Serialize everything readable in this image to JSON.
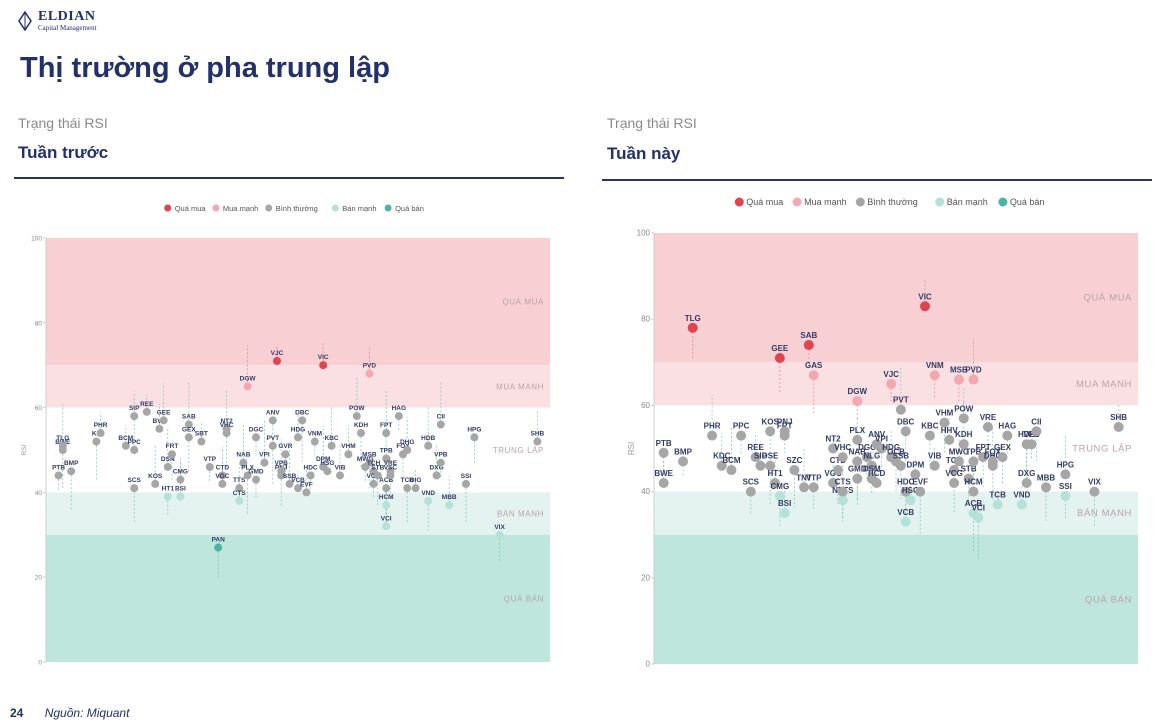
{
  "brand": {
    "name": "ELDIAN",
    "sub": "Capital Management"
  },
  "title": "Thị trường ở pha trung lập",
  "footer": {
    "page": "24",
    "source": "Nguồn: Miquant"
  },
  "panels": [
    {
      "subtitle": "Trạng thái RSI",
      "heading": "Tuần trước"
    },
    {
      "subtitle": "Trạng thái RSI",
      "heading": "Tuần này"
    }
  ],
  "legend": [
    {
      "label": "Quá mua",
      "color": "#e0454f"
    },
    {
      "label": "Mua mạnh",
      "color": "#f3a8b0"
    },
    {
      "label": "Bình thường",
      "color": "#a6a6a6"
    },
    {
      "label": "Bán mạnh",
      "color": "#b4e1d8"
    },
    {
      "label": "Quá bán",
      "color": "#4fb3a3"
    }
  ],
  "zone_colors": {
    "qua_mua": "#f8d0d4",
    "mua_manh": "#fbe0e3",
    "trung_lap": "#ffffff",
    "ban_manh": "#e5f3f0",
    "qua_ban": "#bfe6dc"
  },
  "chart_data": [
    {
      "type": "scatter",
      "ylabel": "RSI",
      "ylim": [
        0,
        100
      ],
      "yticks": [
        0,
        20,
        40,
        60,
        80,
        100
      ],
      "zones": [
        {
          "label": "QUÁ MUA",
          "from": 70,
          "to": 100
        },
        {
          "label": "MUA MẠNH",
          "from": 60,
          "to": 70
        },
        {
          "label": "TRUNG LẬP",
          "from": 40,
          "to": 60
        },
        {
          "label": "BÁN MẠNH",
          "from": 30,
          "to": 40
        },
        {
          "label": "QUÁ BÁN",
          "from": 0,
          "to": 30
        }
      ],
      "points": [
        {
          "l": "PTB",
          "x": 1.5,
          "y": 44
        },
        {
          "l": "BWE",
          "x": 2,
          "y": 50
        },
        {
          "l": "TLG",
          "x": 2,
          "y": 51
        },
        {
          "l": "BMP",
          "x": 3,
          "y": 45
        },
        {
          "l": "KE",
          "x": 6,
          "y": 52
        },
        {
          "l": "PHR",
          "x": 6.5,
          "y": 54
        },
        {
          "l": "BCM",
          "x": 9.5,
          "y": 51
        },
        {
          "l": "SIP",
          "x": 10.5,
          "y": 58
        },
        {
          "l": "SCS",
          "x": 10.5,
          "y": 41
        },
        {
          "l": "PPC",
          "x": 10.5,
          "y": 50
        },
        {
          "l": "REE",
          "x": 12,
          "y": 59
        },
        {
          "l": "KOS",
          "x": 13,
          "y": 42
        },
        {
          "l": "BVH",
          "x": 13.5,
          "y": 55
        },
        {
          "l": "GEE",
          "x": 14,
          "y": 57
        },
        {
          "l": "DSN",
          "x": 14.5,
          "y": 46
        },
        {
          "l": "HT1",
          "x": 14.5,
          "y": 39
        },
        {
          "l": "FRT",
          "x": 15,
          "y": 49
        },
        {
          "l": "CMG",
          "x": 16,
          "y": 43
        },
        {
          "l": "BSI",
          "x": 16,
          "y": 39
        },
        {
          "l": "SAB",
          "x": 17,
          "y": 56
        },
        {
          "l": "GEX",
          "x": 17,
          "y": 53
        },
        {
          "l": "SBT",
          "x": 18.5,
          "y": 52
        },
        {
          "l": "VTP",
          "x": 19.5,
          "y": 46
        },
        {
          "l": "PAN",
          "x": 20.5,
          "y": 27
        },
        {
          "l": "CTD",
          "x": 21,
          "y": 44
        },
        {
          "l": "VGC",
          "x": 21,
          "y": 42
        },
        {
          "l": "NT2",
          "x": 21.5,
          "y": 55
        },
        {
          "l": "VHC",
          "x": 21.5,
          "y": 54
        },
        {
          "l": "TTS",
          "x": 23,
          "y": 41
        },
        {
          "l": "CTS",
          "x": 23,
          "y": 38
        },
        {
          "l": "NAB",
          "x": 23.5,
          "y": 47
        },
        {
          "l": "PLX",
          "x": 24,
          "y": 44
        },
        {
          "l": "DGW",
          "x": 24,
          "y": 65
        },
        {
          "l": "DGC",
          "x": 25,
          "y": 53
        },
        {
          "l": "GMD",
          "x": 25,
          "y": 43
        },
        {
          "l": "VPI",
          "x": 26,
          "y": 47
        },
        {
          "l": "ANV",
          "x": 27,
          "y": 57
        },
        {
          "l": "PVT",
          "x": 27,
          "y": 51
        },
        {
          "l": "VJC",
          "x": 27.5,
          "y": 71
        },
        {
          "l": "GVR",
          "x": 28.5,
          "y": 49
        },
        {
          "l": "PNJ",
          "x": 28,
          "y": 44
        },
        {
          "l": "VPB",
          "x": 28,
          "y": 45
        },
        {
          "l": "SSB",
          "x": 29,
          "y": 42
        },
        {
          "l": "VCB",
          "x": 30,
          "y": 41
        },
        {
          "l": "HDG",
          "x": 30,
          "y": 53
        },
        {
          "l": "DBC",
          "x": 30.5,
          "y": 57
        },
        {
          "l": "EVF",
          "x": 31,
          "y": 40
        },
        {
          "l": "HDC",
          "x": 31.5,
          "y": 44
        },
        {
          "l": "VNM",
          "x": 32,
          "y": 52
        },
        {
          "l": "VIC",
          "x": 33,
          "y": 70
        },
        {
          "l": "DPM",
          "x": 33,
          "y": 46
        },
        {
          "l": "HSG",
          "x": 33.5,
          "y": 45
        },
        {
          "l": "KBC",
          "x": 34,
          "y": 51
        },
        {
          "l": "VIB",
          "x": 35,
          "y": 44
        },
        {
          "l": "VHM",
          "x": 36,
          "y": 49
        },
        {
          "l": "POW",
          "x": 37,
          "y": 58
        },
        {
          "l": "KDH",
          "x": 37.5,
          "y": 54
        },
        {
          "l": "MWG",
          "x": 38,
          "y": 46
        },
        {
          "l": "MSB",
          "x": 38.5,
          "y": 47
        },
        {
          "l": "TCH",
          "x": 39,
          "y": 45
        },
        {
          "l": "VCG",
          "x": 39,
          "y": 42
        },
        {
          "l": "STB",
          "x": 39.5,
          "y": 44
        },
        {
          "l": "PVD",
          "x": 38.5,
          "y": 68
        },
        {
          "l": "FPT",
          "x": 40.5,
          "y": 54
        },
        {
          "l": "TPB",
          "x": 40.5,
          "y": 48
        },
        {
          "l": "ACB",
          "x": 40.5,
          "y": 41
        },
        {
          "l": "HCM",
          "x": 40.5,
          "y": 37
        },
        {
          "l": "VRE",
          "x": 41,
          "y": 45
        },
        {
          "l": "VSC",
          "x": 41,
          "y": 44
        },
        {
          "l": "VCI",
          "x": 40.5,
          "y": 32
        },
        {
          "l": "HAG",
          "x": 42,
          "y": 58
        },
        {
          "l": "FOX",
          "x": 42.5,
          "y": 49
        },
        {
          "l": "DHG",
          "x": 43,
          "y": 50
        },
        {
          "l": "TCB",
          "x": 43,
          "y": 41
        },
        {
          "l": "DIG",
          "x": 44,
          "y": 41
        },
        {
          "l": "VND",
          "x": 45.5,
          "y": 38
        },
        {
          "l": "HDB",
          "x": 45.5,
          "y": 51
        },
        {
          "l": "CII",
          "x": 47,
          "y": 56
        },
        {
          "l": "DXG",
          "x": 46.5,
          "y": 44
        },
        {
          "l": "VPB",
          "x": 47,
          "y": 47
        },
        {
          "l": "MBB",
          "x": 48,
          "y": 37
        },
        {
          "l": "SSI",
          "x": 50,
          "y": 42
        },
        {
          "l": "HPG",
          "x": 51,
          "y": 53
        },
        {
          "l": "VIX",
          "x": 54,
          "y": 30
        },
        {
          "l": "SHB",
          "x": 58.5,
          "y": 52
        }
      ]
    },
    {
      "type": "scatter",
      "ylabel": "RSI",
      "ylim": [
        0,
        100
      ],
      "yticks": [
        0,
        20,
        40,
        60,
        80,
        100
      ],
      "zones": [
        {
          "label": "QUÁ MUA",
          "from": 70,
          "to": 100
        },
        {
          "label": "MUA MẠNH",
          "from": 60,
          "to": 70
        },
        {
          "label": "TRUNG LẬP",
          "from": 40,
          "to": 60
        },
        {
          "label": "BÁN MẠNH",
          "from": 30,
          "to": 40
        },
        {
          "label": "QUÁ BÁN",
          "from": 0,
          "to": 30
        }
      ],
      "points": [
        {
          "l": "PTB",
          "x": 1,
          "y": 49
        },
        {
          "l": "BWE",
          "x": 1,
          "y": 42
        },
        {
          "l": "BMP",
          "x": 3,
          "y": 47
        },
        {
          "l": "TLG",
          "x": 4,
          "y": 78
        },
        {
          "l": "PHR",
          "x": 6,
          "y": 53
        },
        {
          "l": "KDC",
          "x": 7,
          "y": 46
        },
        {
          "l": "BCM",
          "x": 8,
          "y": 45
        },
        {
          "l": "PPC",
          "x": 9,
          "y": 53
        },
        {
          "l": "SCS",
          "x": 10,
          "y": 40
        },
        {
          "l": "REE",
          "x": 10.5,
          "y": 48
        },
        {
          "l": "SIP",
          "x": 11,
          "y": 46
        },
        {
          "l": "DSE",
          "x": 12,
          "y": 46
        },
        {
          "l": "KOS",
          "x": 12,
          "y": 54
        },
        {
          "l": "HT1",
          "x": 12.5,
          "y": 42
        },
        {
          "l": "CMG",
          "x": 13,
          "y": 39
        },
        {
          "l": "GEE",
          "x": 13,
          "y": 71
        },
        {
          "l": "FRT",
          "x": 13.5,
          "y": 53
        },
        {
          "l": "PNJ",
          "x": 13.5,
          "y": 54
        },
        {
          "l": "BSI",
          "x": 13.5,
          "y": 35
        },
        {
          "l": "SZC",
          "x": 14.5,
          "y": 45
        },
        {
          "l": "TNT",
          "x": 15.5,
          "y": 41
        },
        {
          "l": "SAB",
          "x": 16,
          "y": 74
        },
        {
          "l": "VTP",
          "x": 16.5,
          "y": 41
        },
        {
          "l": "GAS",
          "x": 16.5,
          "y": 67
        },
        {
          "l": "NT2",
          "x": 18.5,
          "y": 50
        },
        {
          "l": "VGC",
          "x": 18.5,
          "y": 42
        },
        {
          "l": "CTD",
          "x": 19,
          "y": 45
        },
        {
          "l": "VHC",
          "x": 19.5,
          "y": 48
        },
        {
          "l": "NETS",
          "x": 19.5,
          "y": 38
        },
        {
          "l": "CTS",
          "x": 19.5,
          "y": 40
        },
        {
          "l": "GMD",
          "x": 21,
          "y": 43
        },
        {
          "l": "NAB",
          "x": 21,
          "y": 47
        },
        {
          "l": "PLX",
          "x": 21,
          "y": 52
        },
        {
          "l": "DGW",
          "x": 21,
          "y": 61
        },
        {
          "l": "DGC",
          "x": 22,
          "y": 48
        },
        {
          "l": "NLG",
          "x": 22.5,
          "y": 46
        },
        {
          "l": "DSM",
          "x": 22.5,
          "y": 43
        },
        {
          "l": "HCD",
          "x": 23,
          "y": 42
        },
        {
          "l": "ANV",
          "x": 23,
          "y": 51
        },
        {
          "l": "VPI",
          "x": 23.5,
          "y": 50
        },
        {
          "l": "HDG",
          "x": 24.5,
          "y": 48
        },
        {
          "l": "VJC",
          "x": 24.5,
          "y": 65
        },
        {
          "l": "OCB",
          "x": 25,
          "y": 47
        },
        {
          "l": "PVT",
          "x": 25.5,
          "y": 59
        },
        {
          "l": "SSB",
          "x": 25.5,
          "y": 46
        },
        {
          "l": "HDC",
          "x": 26,
          "y": 40
        },
        {
          "l": "DBC",
          "x": 26,
          "y": 54
        },
        {
          "l": "VCB",
          "x": 26,
          "y": 33
        },
        {
          "l": "HSG",
          "x": 26.5,
          "y": 38
        },
        {
          "l": "DPM",
          "x": 27,
          "y": 44
        },
        {
          "l": "EVF",
          "x": 27.5,
          "y": 40
        },
        {
          "l": "VIC",
          "x": 28,
          "y": 83
        },
        {
          "l": "KBC",
          "x": 28.5,
          "y": 53
        },
        {
          "l": "VIB",
          "x": 29,
          "y": 46
        },
        {
          "l": "VNM",
          "x": 29,
          "y": 67
        },
        {
          "l": "VHM",
          "x": 30,
          "y": 56
        },
        {
          "l": "HHV",
          "x": 30.5,
          "y": 52
        },
        {
          "l": "TCH",
          "x": 31,
          "y": 45
        },
        {
          "l": "VCG",
          "x": 31,
          "y": 42
        },
        {
          "l": "MWG",
          "x": 31.5,
          "y": 47
        },
        {
          "l": "MSB",
          "x": 31.5,
          "y": 66
        },
        {
          "l": "KDH",
          "x": 32,
          "y": 51
        },
        {
          "l": "STB",
          "x": 32.5,
          "y": 43
        },
        {
          "l": "PVD",
          "x": 33,
          "y": 66
        },
        {
          "l": "POW",
          "x": 32,
          "y": 57
        },
        {
          "l": "TPB",
          "x": 33,
          "y": 47
        },
        {
          "l": "HCM",
          "x": 33,
          "y": 40
        },
        {
          "l": "ACB",
          "x": 33,
          "y": 35
        },
        {
          "l": "VCI",
          "x": 33.5,
          "y": 34
        },
        {
          "l": "FPT",
          "x": 34,
          "y": 48
        },
        {
          "l": "VRE",
          "x": 34.5,
          "y": 55
        },
        {
          "l": "DHG",
          "x": 35,
          "y": 46
        },
        {
          "l": "FOX",
          "x": 35,
          "y": 47
        },
        {
          "l": "TCB",
          "x": 35.5,
          "y": 37
        },
        {
          "l": "GEX",
          "x": 36,
          "y": 48
        },
        {
          "l": "HAG",
          "x": 36.5,
          "y": 53
        },
        {
          "l": "VND",
          "x": 38,
          "y": 37
        },
        {
          "l": "HDB",
          "x": 38.5,
          "y": 51
        },
        {
          "l": "DXG",
          "x": 38.5,
          "y": 42
        },
        {
          "l": "VPB",
          "x": 39,
          "y": 51
        },
        {
          "l": "CII",
          "x": 39.5,
          "y": 54
        },
        {
          "l": "MBB",
          "x": 40.5,
          "y": 41
        },
        {
          "l": "SSI",
          "x": 42.5,
          "y": 39
        },
        {
          "l": "HPG",
          "x": 42.5,
          "y": 44
        },
        {
          "l": "VIX",
          "x": 45.5,
          "y": 40
        },
        {
          "l": "SHB",
          "x": 48,
          "y": 55
        }
      ]
    }
  ]
}
